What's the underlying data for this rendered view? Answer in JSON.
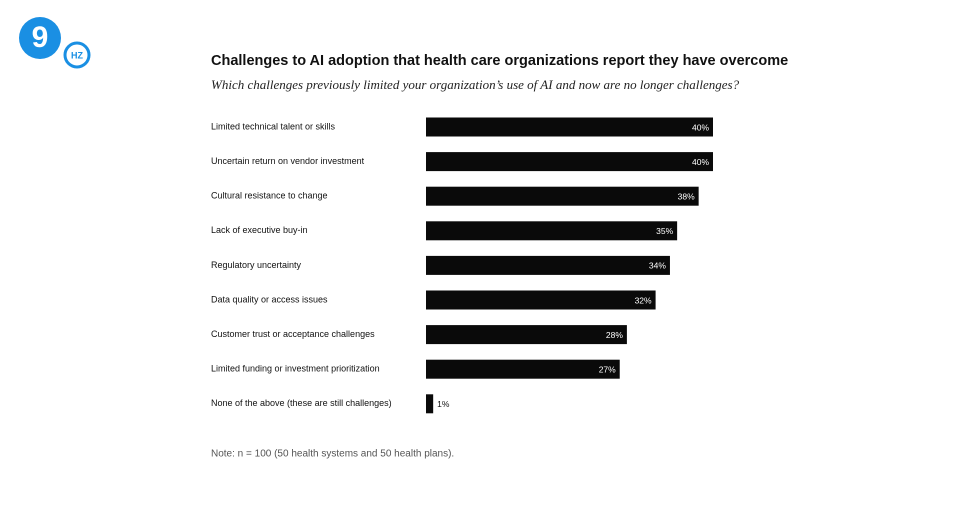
{
  "logo": {
    "mark": "9",
    "text": "HZ"
  },
  "chart_data": {
    "type": "bar",
    "orientation": "horizontal",
    "title": "Challenges to AI adoption that health care organizations report they have overcome",
    "subtitle": "Which challenges previously limited your organization’s use of AI and now are no longer challenges?",
    "categories": [
      "Limited technical talent or skills",
      "Uncertain return on vendor investment",
      "Cultural resistance to change",
      "Lack of executive buy-in",
      "Regulatory uncertainty",
      "Data quality or access issues",
      "Customer trust or acceptance challenges",
      "Limited funding or investment prioritization",
      "None of the above (these are still challenges)"
    ],
    "values": [
      40,
      40,
      38,
      35,
      34,
      32,
      28,
      27,
      1
    ],
    "value_labels": [
      "40%",
      "40%",
      "38%",
      "35%",
      "34%",
      "32%",
      "28%",
      "27%",
      "1%"
    ],
    "color": "#0a0a0a",
    "note": "Note: n = 100 (50 health systems and 50 health plans)."
  }
}
